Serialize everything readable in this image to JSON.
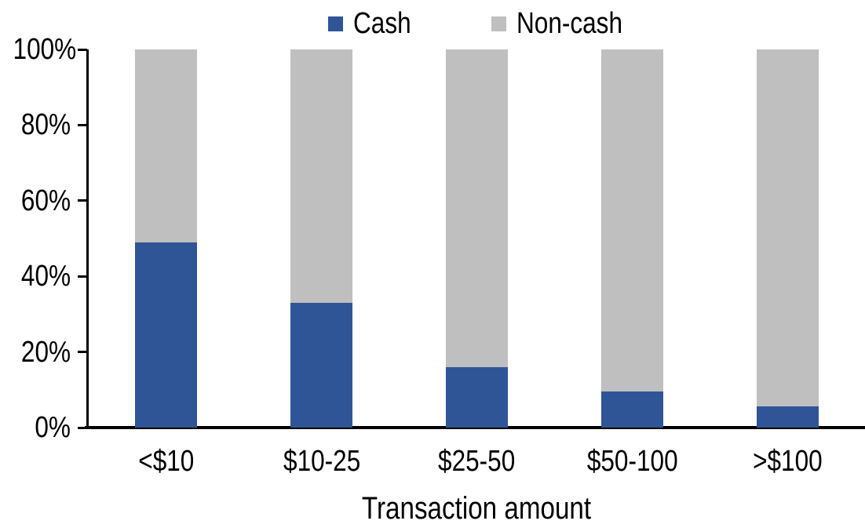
{
  "chart_data": {
    "type": "bar",
    "stacked": true,
    "orientation": "vertical",
    "title": "",
    "xlabel": "Transaction amount",
    "ylabel": "",
    "categories": [
      "<$10",
      "$10-25",
      "$25-50",
      "$50-100",
      ">$100"
    ],
    "series": [
      {
        "name": "Cash",
        "color": "#2F5597",
        "values": [
          49,
          33,
          16,
          9.5,
          5.5
        ]
      },
      {
        "name": "Non-cash",
        "color": "#BFBFBF",
        "values": [
          51,
          67,
          84,
          90.5,
          94.5
        ]
      }
    ],
    "ylim": [
      0,
      100
    ],
    "yticks_top_to_bottom": [
      "100%",
      "80%",
      "60%",
      "40%",
      "20%",
      "0%"
    ],
    "grid": false,
    "legend_position": "top",
    "axis_color": "#000000",
    "background_color": "#FFFFFF"
  }
}
